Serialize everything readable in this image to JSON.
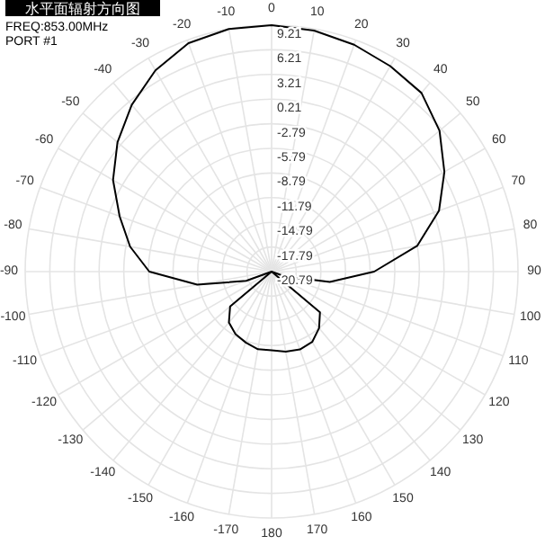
{
  "chart_data": {
    "type": "radar",
    "title": "水平面辐射方向图",
    "annotations": [
      "FREQ:853.00MHz",
      "PORT #1"
    ],
    "categories": [
      "0",
      "10",
      "20",
      "30",
      "40",
      "50",
      "60",
      "70",
      "80",
      "90",
      "100",
      "110",
      "120",
      "130",
      "140",
      "150",
      "160",
      "170",
      "180",
      "-170",
      "-160",
      "-150",
      "-140",
      "-130",
      "-120",
      "-110",
      "-100",
      "-90",
      "-80",
      "-70",
      "-60",
      "-50",
      "-40",
      "-30",
      "-20",
      "-10"
    ],
    "series": [
      {
        "color": "#000000",
        "values": [
          9.21,
          9.0,
          8.6,
          8.1,
          7.6,
          5.9,
          3.5,
          0.9,
          -2.8,
          -8.3,
          -13.6,
          -19,
          -20.79,
          -13.1,
          -11.8,
          -10.9,
          -10.7,
          -10.9,
          -11.2,
          -11.2,
          -11.6,
          -12,
          -12.7,
          -14.2,
          -20.79,
          -17.5,
          -11.6,
          -5.9,
          -3.3,
          -1.1,
          1.5,
          3.7,
          5.7,
          7.5,
          8.8,
          9.2
        ]
      }
    ],
    "ylim": [
      -20.79,
      9.21
    ],
    "yticks": [
      9.21,
      6.21,
      3.21,
      0.21,
      -2.79,
      -5.79,
      -8.79,
      -11.79,
      -14.79,
      -17.79,
      -20.79
    ],
    "grid": true
  }
}
